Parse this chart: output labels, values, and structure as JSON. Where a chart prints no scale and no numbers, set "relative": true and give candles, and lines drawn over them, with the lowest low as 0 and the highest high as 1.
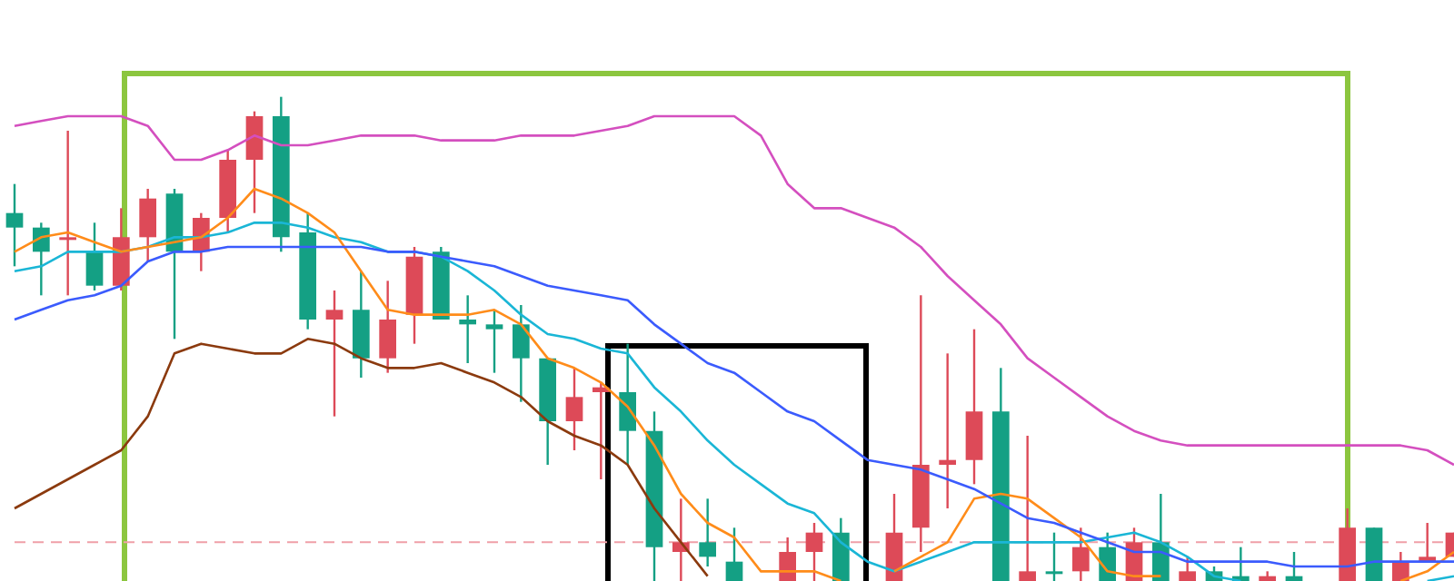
{
  "chart_data": {
    "type": "candlestick",
    "relative": true,
    "tick_labels": false,
    "marker": "none",
    "categories": [
      null,
      null,
      null,
      null,
      null,
      null,
      null,
      null,
      null,
      null,
      null,
      null,
      null,
      null,
      null,
      null,
      null,
      null,
      null,
      null,
      null,
      null,
      null,
      null,
      null,
      null,
      null,
      null,
      null,
      null,
      null,
      null,
      null,
      null,
      null,
      null,
      null,
      null,
      null,
      null,
      null,
      null,
      null,
      null,
      null,
      null,
      null,
      null,
      null,
      null,
      null,
      null,
      null,
      null,
      null
    ],
    "ohlc": [
      [
        0.76,
        0.82,
        0.65,
        0.73
      ],
      [
        0.73,
        0.74,
        0.59,
        0.68
      ],
      [
        0.71,
        0.93,
        0.59,
        0.71
      ],
      [
        0.68,
        0.74,
        0.6,
        0.61
      ],
      [
        0.61,
        0.77,
        0.6,
        0.71
      ],
      [
        0.71,
        0.81,
        0.66,
        0.79
      ],
      [
        0.8,
        0.81,
        0.5,
        0.68
      ],
      [
        0.68,
        0.76,
        0.64,
        0.75
      ],
      [
        0.75,
        0.89,
        0.72,
        0.87
      ],
      [
        0.87,
        0.97,
        0.76,
        0.96
      ],
      [
        0.96,
        1,
        0.68,
        0.71
      ],
      [
        0.72,
        0.76,
        0.52,
        0.54
      ],
      [
        0.54,
        0.6,
        0.34,
        0.56
      ],
      [
        0.56,
        0.64,
        0.42,
        0.46
      ],
      [
        0.46,
        0.62,
        0.43,
        0.54
      ],
      [
        0.55,
        0.69,
        0.49,
        0.67
      ],
      [
        0.68,
        0.69,
        0.54,
        0.54
      ],
      [
        0.54,
        0.59,
        0.45,
        0.53
      ],
      [
        0.53,
        0.56,
        0.43,
        0.52
      ],
      [
        0.53,
        0.57,
        0.37,
        0.46
      ],
      [
        0.46,
        0.46,
        0.24,
        0.33
      ],
      [
        0.33,
        0.44,
        0.27,
        0.38
      ],
      [
        0.39,
        0.41,
        0.21,
        0.4
      ],
      [
        0.39,
        0.49,
        0.24,
        0.31
      ],
      [
        0.31,
        0.35,
        0,
        0.07
      ],
      [
        0.06,
        0.17,
        0,
        0.08
      ],
      [
        0.08,
        0.17,
        0.03,
        0.05
      ],
      [
        0.04,
        0.11,
        0,
        0
      ],
      null,
      [
        0,
        0.09,
        0,
        0.06
      ],
      [
        0.06,
        0.12,
        0,
        0.1
      ],
      [
        0.1,
        0.13,
        0,
        0
      ],
      null,
      [
        0,
        0.18,
        0,
        0.1
      ],
      [
        0.11,
        0.59,
        0.06,
        0.24
      ],
      [
        0.24,
        0.47,
        0.15,
        0.25
      ],
      [
        0.25,
        0.52,
        0.2,
        0.35
      ],
      [
        0.35,
        0.44,
        0,
        0
      ],
      [
        0,
        0.3,
        0,
        0.02
      ],
      [
        0.02,
        0.1,
        0,
        0.02
      ],
      [
        0.02,
        0.11,
        0,
        0.07
      ],
      [
        0.07,
        0.1,
        0,
        0
      ],
      [
        0,
        0.11,
        0,
        0.08
      ],
      [
        0.08,
        0.18,
        0,
        0
      ],
      [
        0,
        0.05,
        0,
        0.02
      ],
      [
        0.02,
        0.03,
        0,
        0
      ],
      [
        0.01,
        0.07,
        0,
        0
      ],
      [
        0,
        0.02,
        0,
        0.01
      ],
      [
        0.01,
        0.06,
        0,
        0
      ],
      null,
      [
        0,
        0.15,
        0,
        0.11
      ],
      [
        0.11,
        0.11,
        0,
        0
      ],
      [
        0,
        0.06,
        0,
        0.04
      ],
      [
        0.04,
        0.12,
        0.04,
        0.05
      ],
      [
        0.05,
        0.1,
        0.05,
        0.1
      ]
    ],
    "colors": [
      "#14a084",
      "#14a084",
      "#dd4a58",
      "#14a084",
      "#dd4a58",
      "#dd4a58",
      "#14a084",
      "#dd4a58",
      "#dd4a58",
      "#dd4a58",
      "#14a084",
      "#14a084",
      "#dd4a58",
      "#14a084",
      "#dd4a58",
      "#dd4a58",
      "#14a084",
      "#14a084",
      "#14a084",
      "#14a084",
      "#14a084",
      "#dd4a58",
      "#dd4a58",
      "#14a084",
      "#14a084",
      "#dd4a58",
      "#14a084",
      "#14a084",
      null,
      "#dd4a58",
      "#dd4a58",
      "#14a084",
      null,
      "#dd4a58",
      "#dd4a58",
      "#dd4a58",
      "#dd4a58",
      "#14a084",
      "#dd4a58",
      "#14a084",
      "#dd4a58",
      "#14a084",
      "#dd4a58",
      "#14a084",
      "#dd4a58",
      "#14a084",
      "#14a084",
      "#dd4a58",
      "#14a084",
      null,
      "#dd4a58",
      "#14a084",
      "#dd4a58",
      "#dd4a58",
      "#dd4a58"
    ],
    "series": [
      {
        "type": "line",
        "color": "#d44fbf",
        "values": [
          0.94,
          0.95,
          0.96,
          0.96,
          0.96,
          0.94,
          0.87,
          0.87,
          0.89,
          0.92,
          0.9,
          0.9,
          0.91,
          0.92,
          0.92,
          0.92,
          0.91,
          0.91,
          0.91,
          0.92,
          0.92,
          0.92,
          0.93,
          0.94,
          0.96,
          0.96,
          0.96,
          0.96,
          0.92,
          0.82,
          0.77,
          0.77,
          0.75,
          0.73,
          0.69,
          0.63,
          0.58,
          0.53,
          0.46,
          0.42,
          0.38,
          0.34,
          0.31,
          0.29,
          0.28,
          0.28,
          0.28,
          0.28,
          0.28,
          0.28,
          0.28,
          0.28,
          0.28,
          0.27,
          0.24
        ]
      },
      {
        "type": "line",
        "color": "#3b5bfd",
        "values": [
          0.54,
          0.56,
          0.58,
          0.59,
          0.61,
          0.66,
          0.68,
          0.68,
          0.69,
          0.69,
          0.69,
          0.69,
          0.69,
          0.69,
          0.68,
          0.68,
          0.67,
          0.66,
          0.65,
          0.63,
          0.61,
          0.6,
          0.59,
          0.58,
          0.53,
          0.49,
          0.45,
          0.43,
          0.39,
          0.35,
          0.33,
          0.29,
          0.25,
          0.24,
          0.23,
          0.21,
          0.19,
          0.16,
          0.13,
          0.12,
          0.1,
          0.08,
          0.06,
          0.06,
          0.04,
          0.04,
          0.04,
          0.04,
          0.03,
          0.03,
          0.03,
          0.04,
          0.04,
          0.04,
          0.04
        ]
      },
      {
        "type": "line",
        "color": "#8b3a0e",
        "values": [
          0.15,
          0.18,
          0.21,
          0.24,
          0.27,
          0.34,
          0.47,
          0.49,
          0.48,
          0.47,
          0.47,
          0.5,
          0.49,
          0.46,
          0.44,
          0.44,
          0.45,
          0.43,
          0.41,
          0.38,
          0.33,
          0.3,
          0.28,
          0.24,
          0.15,
          0.08,
          0.01,
          null,
          null,
          null,
          null,
          null,
          null,
          null,
          null,
          null,
          null,
          null,
          null,
          null,
          null,
          null,
          null,
          null,
          null,
          null,
          null,
          null,
          null,
          null,
          null,
          null,
          null,
          null,
          null
        ]
      },
      {
        "type": "line",
        "color": "#ff8c1a",
        "values": [
          0.68,
          0.71,
          0.72,
          0.7,
          0.68,
          0.69,
          0.7,
          0.71,
          0.75,
          0.81,
          0.79,
          0.76,
          0.72,
          0.64,
          0.56,
          0.55,
          0.55,
          0.55,
          0.56,
          0.53,
          0.46,
          0.44,
          0.41,
          0.36,
          0.28,
          0.18,
          0.12,
          0.09,
          0.02,
          0.02,
          0.02,
          0,
          null,
          0.02,
          0.05,
          0.08,
          0.17,
          0.18,
          0.17,
          0.13,
          0.09,
          0.02,
          0.01,
          0.01,
          null,
          null,
          null,
          null,
          null,
          null,
          null,
          null,
          0,
          0.02,
          0.06
        ]
      },
      {
        "type": "line",
        "color": "#1ab6d6",
        "values": [
          0.64,
          0.65,
          0.68,
          0.68,
          0.68,
          0.69,
          0.71,
          0.71,
          0.72,
          0.74,
          0.74,
          0.73,
          0.71,
          0.7,
          0.68,
          0.68,
          0.67,
          0.64,
          0.6,
          0.55,
          0.51,
          0.5,
          0.48,
          0.47,
          0.4,
          0.35,
          0.29,
          0.24,
          0.2,
          0.16,
          0.14,
          0.08,
          0.04,
          0.02,
          0.04,
          0.06,
          0.08,
          0.08,
          0.08,
          0.08,
          0.08,
          0.09,
          0.1,
          0.08,
          0.05,
          0.01,
          0,
          null,
          null,
          null,
          null,
          null,
          null,
          0,
          0.01
        ]
      }
    ],
    "ref_lines": [
      {
        "axis": "y",
        "value": 0.08,
        "color": "#f0a0a8",
        "line_style": "dashed"
      }
    ]
  }
}
